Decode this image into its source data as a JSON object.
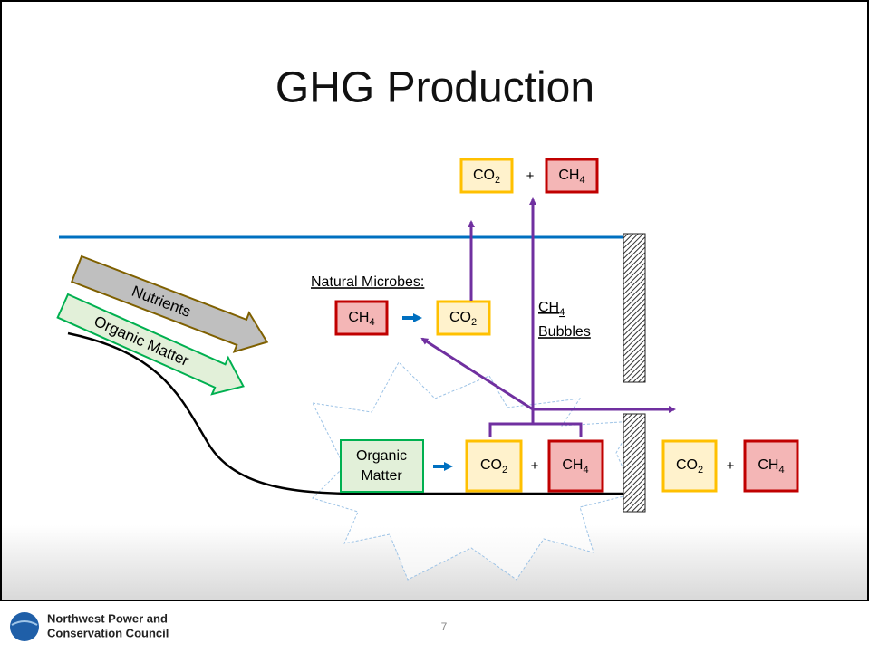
{
  "title": "GHG Production",
  "top_products": {
    "left": {
      "text": "CO",
      "sub": "2"
    },
    "plus": "+",
    "right": {
      "text": "CH",
      "sub": "4"
    }
  },
  "inflows": {
    "nutrients": "Nutrients",
    "organic_matter": "Organic Matter"
  },
  "microbes": {
    "label": "Natural Microbes:",
    "input": {
      "text": "CH",
      "sub": "4"
    },
    "output": {
      "text": "CO",
      "sub": "2"
    }
  },
  "bubbles": {
    "text": "CH",
    "sub": "4",
    "line2": "Bubbles"
  },
  "sediment": {
    "source": [
      "Organic",
      "Matter"
    ],
    "left": {
      "text": "CO",
      "sub": "2"
    },
    "plus": "+",
    "right": {
      "text": "CH",
      "sub": "4"
    }
  },
  "downstream": {
    "left": {
      "text": "CO",
      "sub": "2"
    },
    "plus": "+",
    "right": {
      "text": "CH",
      "sub": "4"
    }
  },
  "footer": {
    "org": [
      "Northwest Power and",
      "Conservation Council"
    ],
    "page": "7"
  }
}
